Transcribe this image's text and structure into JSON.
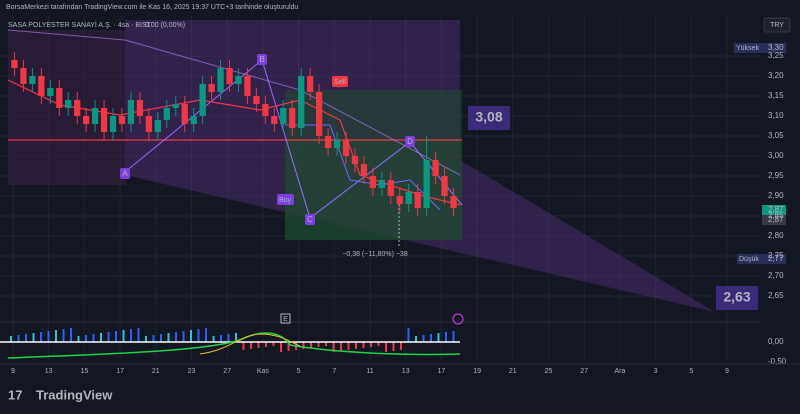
{
  "header": "BorsaMerkezi tarafından TradingView.com ile Kas 16, 2025 19:37 UTC+3 tarihinde oluşturuldu",
  "chart_data": {
    "type": "candlestick",
    "title": "SASA POLYESTER SANAYİ A.Ş. · 4sa · BIST",
    "subtitle": "0,00 (0,00%)",
    "currency": "TRY",
    "open": [
      3.24,
      3.22,
      3.18,
      3.2,
      3.15,
      3.17,
      3.12,
      3.14,
      3.1,
      3.08,
      3.12,
      3.06,
      3.1,
      3.08,
      3.14,
      3.1,
      3.06,
      3.09,
      3.12,
      3.13,
      3.08,
      3.1,
      3.18,
      3.16,
      3.22,
      3.18,
      3.2,
      3.15,
      3.13,
      3.1,
      3.08,
      3.12,
      3.07,
      3.2,
      3.16,
      3.05,
      3.02,
      3.04,
      3.0,
      2.98,
      2.95,
      2.92,
      2.94,
      2.9,
      2.88,
      2.91,
      2.87,
      2.99,
      2.95,
      2.9
    ],
    "high": [
      3.26,
      3.24,
      3.22,
      3.22,
      3.19,
      3.19,
      3.16,
      3.16,
      3.12,
      3.14,
      3.14,
      3.12,
      3.12,
      3.16,
      3.16,
      3.12,
      3.11,
      3.14,
      3.15,
      3.15,
      3.12,
      3.2,
      3.2,
      3.24,
      3.24,
      3.22,
      3.22,
      3.17,
      3.15,
      3.12,
      3.14,
      3.14,
      3.22,
      3.22,
      3.18,
      3.07,
      3.06,
      3.06,
      3.02,
      3.0,
      2.97,
      2.96,
      2.96,
      2.92,
      2.93,
      2.93,
      3.05,
      3.01,
      2.97,
      2.92
    ],
    "low": [
      3.2,
      3.16,
      3.16,
      3.13,
      3.13,
      3.1,
      3.1,
      3.08,
      3.06,
      3.06,
      3.04,
      3.04,
      3.06,
      3.06,
      3.08,
      3.04,
      3.04,
      3.07,
      3.1,
      3.06,
      3.06,
      3.08,
      3.14,
      3.14,
      3.16,
      3.16,
      3.13,
      3.11,
      3.08,
      3.06,
      3.06,
      3.05,
      3.05,
      3.14,
      3.03,
      3.0,
      3.0,
      2.98,
      2.96,
      2.93,
      2.9,
      2.9,
      2.88,
      2.86,
      2.86,
      2.85,
      2.85,
      2.93,
      2.88,
      2.85
    ],
    "close": [
      3.22,
      3.18,
      3.2,
      3.15,
      3.17,
      3.12,
      3.14,
      3.1,
      3.08,
      3.12,
      3.06,
      3.1,
      3.08,
      3.14,
      3.1,
      3.06,
      3.09,
      3.12,
      3.13,
      3.08,
      3.1,
      3.18,
      3.16,
      3.22,
      3.18,
      3.2,
      3.15,
      3.13,
      3.1,
      3.08,
      3.12,
      3.07,
      3.2,
      3.16,
      3.05,
      3.02,
      3.04,
      3.0,
      2.98,
      2.95,
      2.92,
      2.94,
      2.9,
      2.88,
      2.91,
      2.87,
      2.99,
      2.95,
      2.9,
      2.87
    ],
    "up_color": "#089981",
    "down_color": "#f23645",
    "x_labels": [
      "9",
      "13",
      "15",
      "17",
      "21",
      "23",
      "27",
      "Kas",
      "5",
      "7",
      "11",
      "13",
      "17",
      "19",
      "21",
      "25",
      "27",
      "Ara",
      "3",
      "5",
      "9"
    ],
    "ylim": [
      2.62,
      3.34
    ],
    "yticks": [
      {
        "value": 3.25,
        "label": "3,25"
      },
      {
        "value": 3.2,
        "label": "3,20"
      },
      {
        "value": 3.15,
        "label": "3,15"
      },
      {
        "value": 3.1,
        "label": "3,10"
      },
      {
        "value": 3.05,
        "label": "3,05"
      },
      {
        "value": 3.0,
        "label": "3,00"
      },
      {
        "value": 2.95,
        "label": "2,95"
      },
      {
        "value": 2.9,
        "label": "2,90"
      },
      {
        "value": 2.85,
        "label": "2,85"
      },
      {
        "value": 2.8,
        "label": "2,80"
      },
      {
        "value": 2.75,
        "label": "2,75"
      },
      {
        "value": 2.7,
        "label": "2,70"
      },
      {
        "value": 2.65,
        "label": "2,65"
      }
    ],
    "grid": true,
    "high_label": "Yüksek",
    "high_value": "3,30",
    "low_label": "Düşük",
    "low_value": "2,77",
    "last_price": "2,87",
    "last_price_2": "2,87",
    "target_box": "3,08",
    "target_box_2": "2,63",
    "points": [
      "A",
      "B",
      "C",
      "D"
    ],
    "signals": [
      "Sell",
      "Buy"
    ],
    "measure": "−0,38 (−11,80%) −38",
    "indicator_ticks": [
      "0,00",
      "-0,50"
    ],
    "event": "E"
  },
  "footer": "TradingView"
}
